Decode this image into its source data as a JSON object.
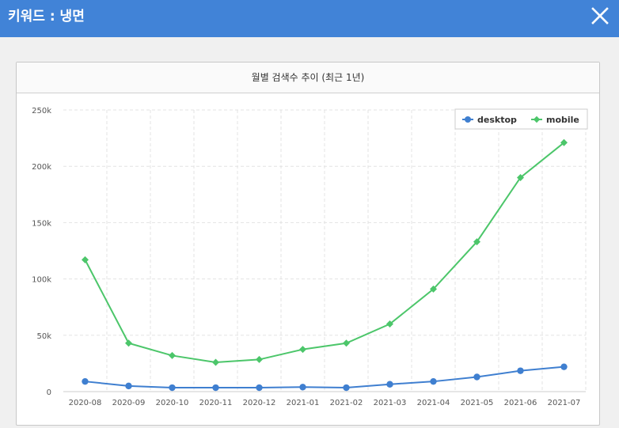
{
  "window": {
    "title": "키워드 : 냉면",
    "close_icon": "close-icon"
  },
  "colors": {
    "titlebar": "#4183d7",
    "desktop": "#3f7fd0",
    "mobile": "#4cc66a"
  },
  "panel": {
    "title": "월별 검색수 추이 (최근 1년)"
  },
  "chart_data": {
    "type": "line",
    "title": "월별 검색수 추이 (최근 1년)",
    "categories": [
      "2020-08",
      "2020-09",
      "2020-10",
      "2020-11",
      "2020-12",
      "2021-01",
      "2021-02",
      "2021-03",
      "2021-04",
      "2021-05",
      "2021-06",
      "2021-07"
    ],
    "series": [
      {
        "name": "desktop",
        "color": "#3f7fd0",
        "marker": "circle",
        "values": [
          9000,
          5000,
          3500,
          3500,
          3500,
          4000,
          3500,
          6500,
          9000,
          13000,
          18500,
          22000
        ]
      },
      {
        "name": "mobile",
        "color": "#4cc66a",
        "marker": "diamond",
        "values": [
          117000,
          43000,
          32000,
          26000,
          28500,
          37500,
          43000,
          60000,
          91000,
          133000,
          190000,
          221000
        ]
      }
    ],
    "yticks": [
      "0",
      "50k",
      "100k",
      "150k",
      "200k",
      "250k"
    ],
    "ylim": [
      0,
      250000
    ],
    "grid": true,
    "legend_position": "top-right"
  }
}
